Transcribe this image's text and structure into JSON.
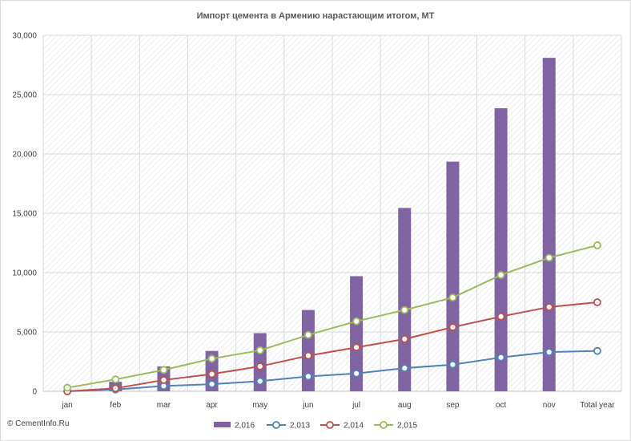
{
  "chart_data": {
    "type": "bar",
    "title": "Импорт цемента в Армению нарастающим  итогом, МТ",
    "categories": [
      "jan",
      "feb",
      "mar",
      "apr",
      "may",
      "jun",
      "jul",
      "aug",
      "sep",
      "oct",
      "nov",
      "Total year"
    ],
    "ylim": [
      0,
      30000
    ],
    "yticks": [
      0,
      5000,
      10000,
      15000,
      20000,
      25000,
      30000
    ],
    "ytick_labels": [
      "0",
      "5,000",
      "10,000",
      "15,000",
      "20,000",
      "25,000",
      "30,000"
    ],
    "grid": true,
    "legend_position": "bottom",
    "bar_series": {
      "name": "2,016",
      "color": "#8064a2",
      "values": [
        0,
        800,
        2100,
        3400,
        4900,
        6850,
        9700,
        15450,
        19350,
        23850,
        28100,
        null
      ]
    },
    "line_series": [
      {
        "name": "2,013",
        "color": "#4f81bd",
        "values": [
          0,
          150,
          450,
          600,
          850,
          1250,
          1500,
          1950,
          2250,
          2850,
          3300,
          3400
        ]
      },
      {
        "name": "2,014",
        "color": "#c0504d",
        "values": [
          0,
          250,
          950,
          1450,
          2100,
          3000,
          3700,
          4400,
          5400,
          6300,
          7100,
          7500
        ]
      },
      {
        "name": "2,015",
        "color": "#9bbb59",
        "values": [
          300,
          1000,
          1800,
          2750,
          3450,
          4750,
          5900,
          6850,
          7900,
          9800,
          11250,
          12300
        ]
      }
    ]
  },
  "copyright": "© CementInfo.Ru"
}
